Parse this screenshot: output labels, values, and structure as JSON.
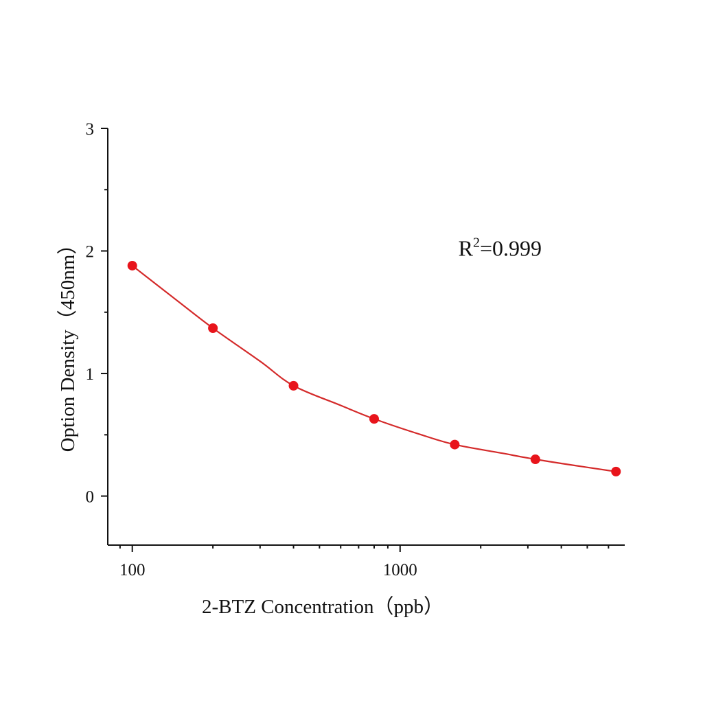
{
  "chart_data": {
    "type": "scatter",
    "title": "",
    "xlabel": "2-BTZ Concentration（ppb）",
    "ylabel": "Option Density（450nm）",
    "xscale": "log",
    "xlim": [
      81,
      6900
    ],
    "ylim": [
      -0.4,
      3
    ],
    "x_ticks": [
      100,
      1000
    ],
    "x_tick_labels": [
      "100",
      "1000"
    ],
    "y_ticks": [
      0,
      1,
      2,
      3
    ],
    "y_tick_labels": [
      "0",
      "1",
      "2",
      "3"
    ],
    "grid": false,
    "series": [
      {
        "name": "measured",
        "color": "#e8141b",
        "x": [
          100,
          200,
          400,
          800,
          1600,
          3200,
          6400
        ],
        "y": [
          1.88,
          1.37,
          0.9,
          0.63,
          0.42,
          0.3,
          0.2
        ]
      }
    ],
    "fit_curve": {
      "color": "#d42a2a",
      "x": [
        100,
        150,
        200,
        300,
        400,
        600,
        800,
        1200,
        1600,
        2400,
        3200,
        4800,
        6400
      ],
      "y": [
        1.88,
        1.58,
        1.37,
        1.1,
        0.9,
        0.74,
        0.63,
        0.5,
        0.42,
        0.35,
        0.3,
        0.24,
        0.2
      ]
    },
    "annotation": {
      "base": "R",
      "superscript": "2",
      "rest": "=0.999",
      "x": 1650,
      "y": 1.96
    }
  }
}
